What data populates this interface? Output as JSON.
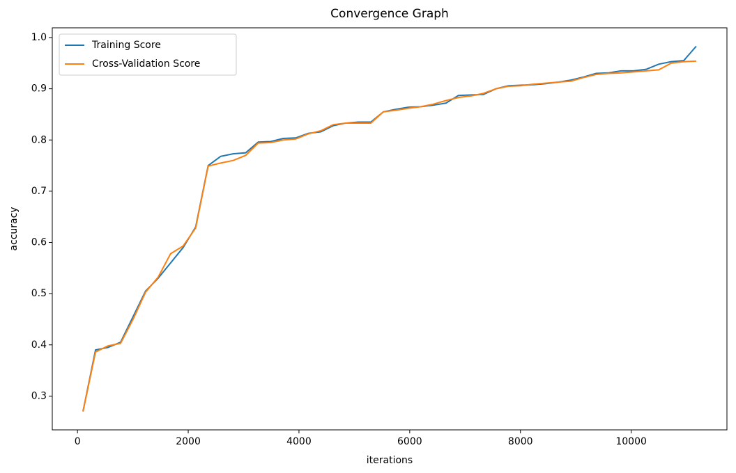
{
  "chart_data": {
    "type": "line",
    "title": "Convergence Graph",
    "x_label": "iterations",
    "y_label": "accuracy",
    "x": [
      100,
      326,
      552,
      778,
      1004,
      1230,
      1456,
      1682,
      1908,
      2134,
      2360,
      2586,
      2812,
      3038,
      3264,
      3490,
      3716,
      3942,
      4168,
      4394,
      4620,
      4846,
      5072,
      5298,
      5524,
      5750,
      5976,
      6202,
      6428,
      6654,
      6880,
      7106,
      7332,
      7558,
      7784,
      8010,
      8236,
      8462,
      8688,
      8914,
      9140,
      9366,
      9592,
      9818,
      10044,
      10270,
      10496,
      10722,
      10948,
      11174
    ],
    "series": [
      {
        "name": "Training Score",
        "color": "#1f77b4",
        "values": [
          0.27,
          0.39,
          0.395,
          0.405,
          0.455,
          0.505,
          0.53,
          0.56,
          0.59,
          0.63,
          0.75,
          0.768,
          0.773,
          0.775,
          0.796,
          0.797,
          0.803,
          0.804,
          0.813,
          0.816,
          0.828,
          0.833,
          0.835,
          0.835,
          0.855,
          0.86,
          0.864,
          0.865,
          0.868,
          0.872,
          0.887,
          0.888,
          0.889,
          0.9,
          0.906,
          0.907,
          0.908,
          0.91,
          0.913,
          0.917,
          0.923,
          0.93,
          0.931,
          0.935,
          0.935,
          0.938,
          0.948,
          0.953,
          0.955,
          0.983
        ]
      },
      {
        "name": "Cross-Validation Score",
        "color": "#ff7f0e",
        "values": [
          0.27,
          0.386,
          0.398,
          0.403,
          0.45,
          0.503,
          0.532,
          0.578,
          0.593,
          0.628,
          0.749,
          0.755,
          0.76,
          0.77,
          0.794,
          0.795,
          0.8,
          0.802,
          0.812,
          0.818,
          0.83,
          0.833,
          0.833,
          0.833,
          0.855,
          0.858,
          0.862,
          0.865,
          0.87,
          0.877,
          0.883,
          0.886,
          0.891,
          0.9,
          0.905,
          0.906,
          0.909,
          0.911,
          0.913,
          0.915,
          0.922,
          0.928,
          0.93,
          0.931,
          0.933,
          0.935,
          0.937,
          0.95,
          0.953,
          0.954
        ]
      }
    ],
    "xlim": [
      -455,
      11729
    ],
    "ylim": [
      0.234,
      1.019
    ],
    "xticks": [
      0,
      2000,
      4000,
      6000,
      8000,
      10000
    ],
    "yticks": [
      0.3,
      0.4,
      0.5,
      0.6,
      0.7,
      0.8,
      0.9,
      {
        "value": 1.0,
        "label": "1.0"
      }
    ],
    "legend": "upper left",
    "grid": false
  }
}
